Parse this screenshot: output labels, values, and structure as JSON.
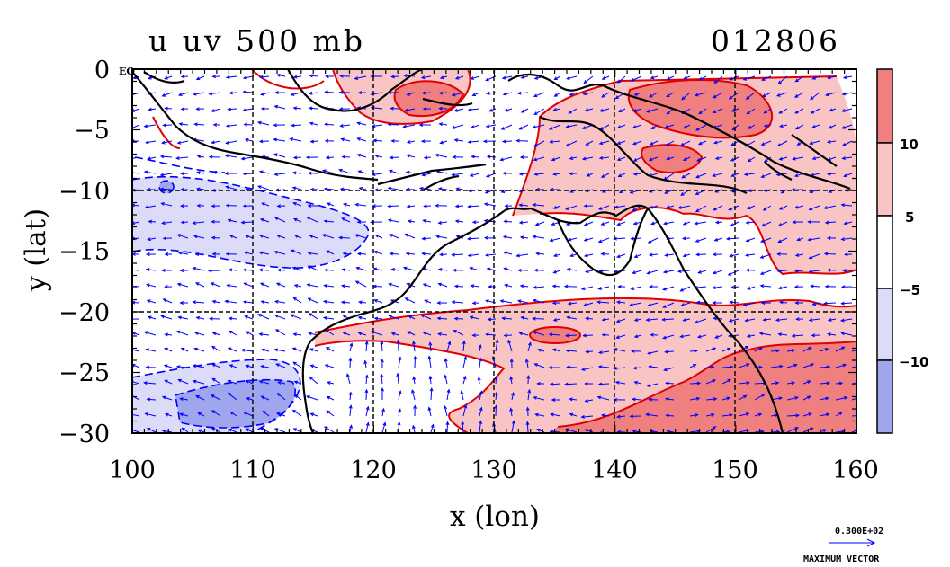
{
  "title_left": "u uv 500 mb",
  "title_right": "012806",
  "eq_label": "EQ",
  "x_axis": {
    "label": "x (lon)",
    "min": 100,
    "max": 160,
    "ticks": [
      "100",
      "110",
      "120",
      "130",
      "140",
      "150",
      "160"
    ]
  },
  "y_axis": {
    "label": "y (lat)",
    "min": -30,
    "max": 0,
    "ticks": [
      "0",
      "−5",
      "−10",
      "−15",
      "−20",
      "−25",
      "−30"
    ]
  },
  "colorbar": {
    "labels": [
      "10",
      "5",
      "−5",
      "−10"
    ],
    "colors": [
      "#f08080",
      "#f8c4c4",
      "#ffffff",
      "#dcdcf8",
      "#9fa6ee"
    ]
  },
  "max_vector": {
    "value": "0.300E+02",
    "caption": "MAXIMUM VECTOR"
  },
  "colors": {
    "positive_contour": "#e00000",
    "negative_contour": "#0000ff",
    "vector": "#0000ff",
    "coastline": "#000000"
  }
}
